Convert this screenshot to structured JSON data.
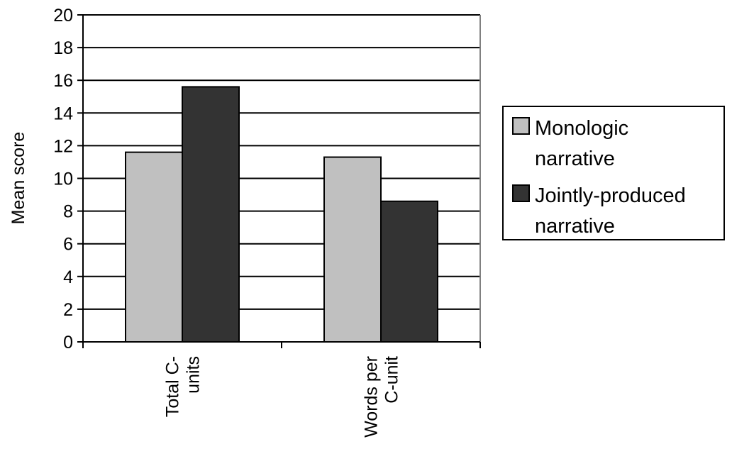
{
  "chart_data": {
    "type": "bar",
    "title": "",
    "xlabel": "",
    "ylabel": "Mean score",
    "ylim": [
      0,
      20
    ],
    "yticks": [
      "0",
      "2",
      "4",
      "6",
      "8",
      "10",
      "12",
      "14",
      "16",
      "18",
      "20"
    ],
    "categories": [
      {
        "lines": [
          "Total C-",
          "units"
        ]
      },
      {
        "lines": [
          "Words per",
          "C-unit"
        ]
      }
    ],
    "series": [
      {
        "name": "Monologic narrative",
        "legend_lines": [
          "Monologic",
          "narrative"
        ],
        "color": "#c0c0c0",
        "values": [
          11.6,
          11.3
        ]
      },
      {
        "name": "Jointly-produced narrative",
        "legend_lines": [
          "Jointly-produced",
          "narrative"
        ],
        "color": "#333333",
        "values": [
          15.6,
          8.6
        ]
      }
    ],
    "grid": true,
    "legend_position": "right"
  }
}
